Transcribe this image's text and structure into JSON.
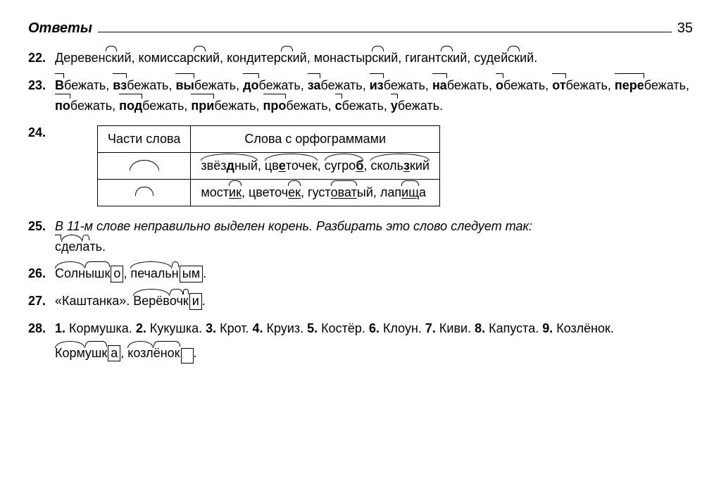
{
  "header": {
    "title": "Ответы",
    "page": "35"
  },
  "items": {
    "n22": {
      "num": "22.",
      "words": [
        {
          "base": "Деревен",
          "suf": "ск",
          "rest": "ий"
        },
        {
          "base": "комиссар",
          "suf": "ск",
          "rest": "ий"
        },
        {
          "base": "кондитер",
          "suf": "ск",
          "rest": "ий"
        },
        {
          "base": "монастыр",
          "suf": "ск",
          "rest": "ий"
        },
        {
          "base": "гигант",
          "suf": "ск",
          "rest": "ий"
        },
        {
          "base": "судей",
          "suf": "ск",
          "rest": "ий."
        }
      ]
    },
    "n23": {
      "num": "23.",
      "words": [
        {
          "pref": "В",
          "rest": "бежать"
        },
        {
          "pref": "вз",
          "rest": "бежать"
        },
        {
          "pref": "вы",
          "rest": "бежать"
        },
        {
          "pref": "до",
          "rest": "бежать"
        },
        {
          "pref": "за",
          "rest": "бежать"
        },
        {
          "pref": "из",
          "rest": "бежать"
        },
        {
          "pref": "на",
          "rest": "бежать"
        },
        {
          "pref": "о",
          "rest": "бежать"
        },
        {
          "pref": "от",
          "rest": "бежать"
        },
        {
          "pref": "пере",
          "rest": "бежать"
        },
        {
          "pref": "по",
          "rest": "бежать"
        },
        {
          "pref": "под",
          "rest": "бежать"
        },
        {
          "pref": "при",
          "rest": "бежать"
        },
        {
          "pref": "про",
          "rest": "бежать"
        },
        {
          "pref": "с",
          "rest": "бежать"
        },
        {
          "pref": "у",
          "rest": "бежать."
        }
      ]
    },
    "n24": {
      "num": "24.",
      "table": {
        "col1": "Части слова",
        "col2": "Слова с орфограммами",
        "row1": {
          "cells": [
            {
              "pre": "звёз",
              "u": "д",
              "post": "ный"
            },
            {
              "pre": "цв",
              "u": "е",
              "post": "точек"
            },
            {
              "pre": "сугро",
              "u": "б",
              "post": ""
            },
            {
              "pre": "сколь",
              "u": "з",
              "post": "кий"
            }
          ]
        },
        "row2": {
          "cells": [
            {
              "pre": "мост",
              "suf": "ик",
              "post": ""
            },
            {
              "pre": "цветоч",
              "suf": "ек",
              "post": ""
            },
            {
              "pre": "густ",
              "suf": "оват",
              "post": "ый"
            },
            {
              "pre": "лап",
              "suf": "ищ",
              "post": "а"
            }
          ]
        }
      }
    },
    "n25": {
      "num": "25.",
      "text": "В 11-м слове неправильно выделен корень. Разбирать это слово следует так:",
      "word": {
        "pref": "с",
        "root": "дел",
        "suf": "а",
        "rest": "ть."
      }
    },
    "n26": {
      "num": "26.",
      "w1": {
        "root": "Солн",
        "suf1": "ышк",
        "end": "о"
      },
      "w2": {
        "root": "печаль",
        "suf1": "н",
        "end": "ым"
      }
    },
    "n27": {
      "num": "27.",
      "title": "«Каштанка».",
      "w": {
        "root": "Верёв",
        "suf1": "оч",
        "suf2": "к",
        "end": "и"
      }
    },
    "n28": {
      "num": "28.",
      "list": [
        {
          "n": "1.",
          "t": "Кормушка."
        },
        {
          "n": "2.",
          "t": "Кукушка."
        },
        {
          "n": "3.",
          "t": "Крот."
        },
        {
          "n": "4.",
          "t": "Круиз."
        },
        {
          "n": "5.",
          "t": "Костёр."
        },
        {
          "n": "6.",
          "t": "Клоун."
        },
        {
          "n": "7.",
          "t": "Киви."
        },
        {
          "n": "8.",
          "t": "Капуста."
        },
        {
          "n": "9.",
          "t": "Козлёнок."
        }
      ],
      "w1": {
        "root": "Корм",
        "suf1": "ушк",
        "end": "а"
      },
      "w2": {
        "root": "козл",
        "suf1": "ёнок",
        "end": ""
      }
    }
  }
}
